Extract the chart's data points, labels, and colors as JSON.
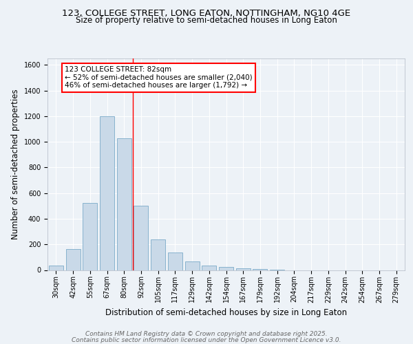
{
  "title_line1": "123, COLLEGE STREET, LONG EATON, NOTTINGHAM, NG10 4GE",
  "title_line2": "Size of property relative to semi-detached houses in Long Eaton",
  "categories": [
    "30sqm",
    "42sqm",
    "55sqm",
    "67sqm",
    "80sqm",
    "92sqm",
    "105sqm",
    "117sqm",
    "129sqm",
    "142sqm",
    "154sqm",
    "167sqm",
    "179sqm",
    "192sqm",
    "204sqm",
    "217sqm",
    "229sqm",
    "242sqm",
    "254sqm",
    "267sqm",
    "279sqm"
  ],
  "values": [
    35,
    165,
    525,
    1200,
    1030,
    500,
    240,
    135,
    65,
    35,
    25,
    15,
    8,
    5,
    0,
    0,
    0,
    0,
    0,
    0,
    0
  ],
  "bar_color": "#c9d9e8",
  "bar_edge_color": "#7aaac8",
  "red_line_x": 4.5,
  "ann_line1": "123 COLLEGE STREET: 82sqm",
  "ann_line2": "← 52% of semi-detached houses are smaller (2,040)",
  "ann_line3": "46% of semi-detached houses are larger (1,792) →",
  "ylabel": "Number of semi-detached properties",
  "xlabel": "Distribution of semi-detached houses by size in Long Eaton",
  "ylim": [
    0,
    1650
  ],
  "yticks": [
    0,
    200,
    400,
    600,
    800,
    1000,
    1200,
    1400,
    1600
  ],
  "footer_line1": "Contains HM Land Registry data © Crown copyright and database right 2025.",
  "footer_line2": "Contains public sector information licensed under the Open Government Licence v3.0.",
  "background_color": "#edf2f7",
  "grid_color": "#ffffff",
  "title_fontsize": 9.5,
  "subtitle_fontsize": 8.5,
  "axis_label_fontsize": 8.5,
  "tick_fontsize": 7,
  "footer_fontsize": 6.5,
  "ann_fontsize": 7.5
}
